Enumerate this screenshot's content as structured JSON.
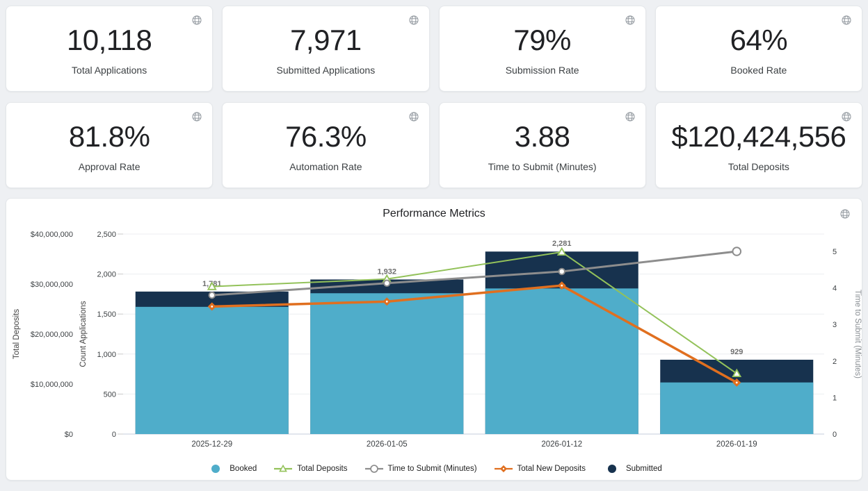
{
  "cards": [
    {
      "value": "10,118",
      "label": "Total Applications"
    },
    {
      "value": "7,971",
      "label": "Submitted Applications"
    },
    {
      "value": "79%",
      "label": "Submission Rate"
    },
    {
      "value": "64%",
      "label": "Booked Rate"
    },
    {
      "value": "81.8%",
      "label": "Approval Rate"
    },
    {
      "value": "76.3%",
      "label": "Automation Rate"
    },
    {
      "value": "3.88",
      "label": "Time to Submit (Minutes)"
    },
    {
      "value": "$120,424,556",
      "label": "Total Deposits"
    }
  ],
  "chart": {
    "title": "Performance Metrics"
  },
  "chart_data": {
    "type": "bar+line combo",
    "title": "Performance Metrics",
    "categories": [
      "2025-12-29",
      "2026-01-05",
      "2026-01-12",
      "2026-01-19"
    ],
    "series": [
      {
        "name": "Submitted",
        "type": "bar",
        "axis": "count",
        "color": "#17324e",
        "values": [
          1781,
          1932,
          2281,
          929
        ],
        "labels": [
          "1,781",
          "1,932",
          "2,281",
          "929"
        ]
      },
      {
        "name": "Booked",
        "type": "bar",
        "axis": "count",
        "color": "#4fadca",
        "values": [
          1590,
          1760,
          1820,
          645
        ]
      },
      {
        "name": "Total Deposits",
        "type": "line",
        "axis": "deposits",
        "color": "#93c25a",
        "marker": "triangle",
        "values": [
          29500000,
          31000000,
          36400000,
          12100000
        ]
      },
      {
        "name": "Time to Submit (Minutes)",
        "type": "line",
        "axis": "time",
        "color": "#8d8d8d",
        "marker": "circle",
        "values": [
          3.8,
          4.13,
          4.45,
          5.0
        ]
      },
      {
        "name": "Total New Deposits",
        "type": "line",
        "axis": "deposits",
        "color": "#e06f1f",
        "marker": "diamond",
        "values": [
          25500000,
          26500000,
          29700000,
          10300000
        ]
      }
    ],
    "axes": {
      "deposits": {
        "title": "Total Deposits",
        "min": 0,
        "max": 40000000,
        "tick_values": [
          0,
          10000000,
          20000000,
          30000000,
          40000000
        ],
        "tick_labels": [
          "$0",
          "$10,000,000",
          "$20,000,000",
          "$30,000,000",
          "$40,000,000"
        ]
      },
      "count": {
        "title": "Count Applications",
        "min": 0,
        "max": 2500,
        "tick_values": [
          0,
          500,
          1000,
          1500,
          2000,
          2500
        ],
        "tick_labels": [
          "0",
          "500",
          "1,000",
          "1,500",
          "2,000",
          "2,500"
        ]
      },
      "time": {
        "title": "Time to Submit (Minutes)",
        "min": 0,
        "max": 5,
        "tick_values": [
          0,
          1,
          2,
          3,
          4,
          5
        ],
        "tick_labels": [
          "0",
          "1",
          "2",
          "3",
          "4",
          "5"
        ]
      }
    },
    "legend": [
      "Booked",
      "Total Deposits",
      "Time to Submit (Minutes)",
      "Total New Deposits",
      "Submitted"
    ],
    "legend_position": "bottom",
    "grid": true
  },
  "colors": {
    "background": "#eef0f3",
    "card_bg": "#ffffff",
    "card_border": "#e4e7ea",
    "value_text": "#202124",
    "label_text": "#3c4043",
    "icon": "#9aa0a6",
    "grid": "#eceef0",
    "tick_dash": "#c9c9c9",
    "axis_line": "#d9dee9",
    "tick_text": "#3c4043",
    "axis_title": "#424242",
    "right_axis_title": "#8a8f94",
    "data_label": "#6e6e6e",
    "legend_text": "#212121",
    "booked": "#4fadca",
    "submitted": "#17324e",
    "total_deposits_line": "#93c25a",
    "total_new_deposits_line": "#e06f1f",
    "time_to_submit_line": "#8d8d8d"
  }
}
